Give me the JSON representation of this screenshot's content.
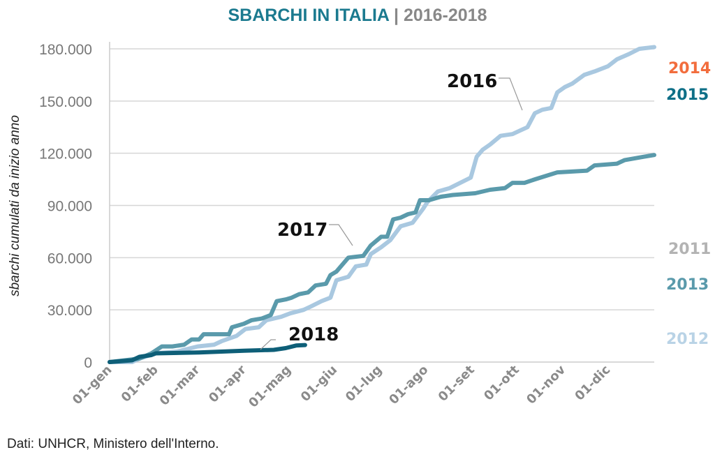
{
  "chart_data": {
    "type": "line",
    "title": "SBARCHI IN ITALIA",
    "subtitle": "2016-2018",
    "ylabel": "sbarchi cumulati da inizio anno",
    "xlabel": "",
    "ylim": [
      0,
      180000
    ],
    "yticks": [
      0,
      30000,
      60000,
      90000,
      120000,
      150000,
      180000
    ],
    "ytick_labels": [
      "0",
      "30.000",
      "60.000",
      "90.000",
      "120.000",
      "150.000",
      "180.000"
    ],
    "xlim": [
      0,
      365
    ],
    "xticks": [
      0,
      31,
      59,
      90,
      120,
      151,
      181,
      212,
      243,
      273,
      304,
      334
    ],
    "xtick_labels": [
      "01-gen",
      "01-feb",
      "01-mar",
      "01-apr",
      "01-mag",
      "01-giu",
      "01-lug",
      "01-ago",
      "01-set",
      "01-ott",
      "01-nov",
      "01-dic"
    ],
    "grid": true,
    "series": [
      {
        "name": "2016",
        "color": "#a9c8e0",
        "x": [
          0,
          15,
          20,
          31,
          45,
          59,
          70,
          75,
          85,
          91,
          100,
          105,
          115,
          121,
          130,
          135,
          142,
          148,
          152,
          160,
          165,
          172,
          175,
          182,
          188,
          195,
          203,
          210,
          213,
          220,
          228,
          235,
          242,
          246,
          250,
          255,
          262,
          270,
          275,
          280,
          285,
          290,
          296,
          300,
          305,
          310,
          318,
          325,
          334,
          340,
          348,
          355,
          365
        ],
        "y": [
          0,
          0,
          2000,
          5000,
          6000,
          9000,
          10000,
          12000,
          15000,
          19000,
          20000,
          24000,
          26000,
          28000,
          30000,
          32000,
          35000,
          37000,
          47000,
          49000,
          55000,
          56000,
          62000,
          66000,
          70000,
          78000,
          80000,
          88000,
          92000,
          98000,
          100000,
          103000,
          106000,
          118000,
          122000,
          125000,
          130000,
          131000,
          133000,
          135000,
          143000,
          145000,
          146000,
          155000,
          158000,
          160000,
          165000,
          167000,
          170000,
          174000,
          177000,
          180000,
          181000
        ]
      },
      {
        "name": "2017",
        "color": "#5a9aab",
        "x": [
          0,
          20,
          28,
          35,
          42,
          50,
          55,
          60,
          63,
          80,
          82,
          90,
          95,
          102,
          108,
          112,
          118,
          122,
          127,
          133,
          138,
          145,
          148,
          152,
          160,
          170,
          175,
          182,
          186,
          190,
          195,
          200,
          205,
          208,
          214,
          222,
          230,
          245,
          255,
          265,
          270,
          278,
          285,
          300,
          320,
          325,
          340,
          345,
          358,
          365
        ],
        "y": [
          0,
          2000,
          5000,
          9000,
          9000,
          10000,
          13000,
          13000,
          16000,
          16000,
          20000,
          22000,
          24000,
          25000,
          27000,
          35000,
          36000,
          37000,
          39000,
          40000,
          44000,
          45000,
          50000,
          52000,
          60000,
          61000,
          67000,
          72000,
          72000,
          82000,
          83000,
          85000,
          86000,
          93000,
          93000,
          95000,
          96000,
          97000,
          99000,
          100000,
          103000,
          103000,
          105000,
          109000,
          110000,
          113000,
          114000,
          116000,
          118000,
          119000
        ]
      },
      {
        "name": "2018",
        "color": "#0e5f78",
        "x": [
          0,
          15,
          20,
          28,
          31,
          60,
          75,
          90,
          110,
          118,
          125,
          131
        ],
        "y": [
          0,
          1000,
          3000,
          4000,
          5000,
          5500,
          6000,
          6500,
          7000,
          8000,
          9500,
          9800
        ]
      }
    ],
    "annotations": [
      "2016",
      "2017",
      "2018"
    ],
    "side_legend": [
      {
        "label": "2014",
        "color": "#f26d3d"
      },
      {
        "label": "2015",
        "color": "#0e6f87"
      },
      {
        "label": "2011",
        "color": "#b3b3b3"
      },
      {
        "label": "2013",
        "color": "#5a9aab"
      },
      {
        "label": "2012",
        "color": "#b9d3e6"
      }
    ]
  },
  "footer": "Dati: UNHCR, Ministero dell'Interno."
}
